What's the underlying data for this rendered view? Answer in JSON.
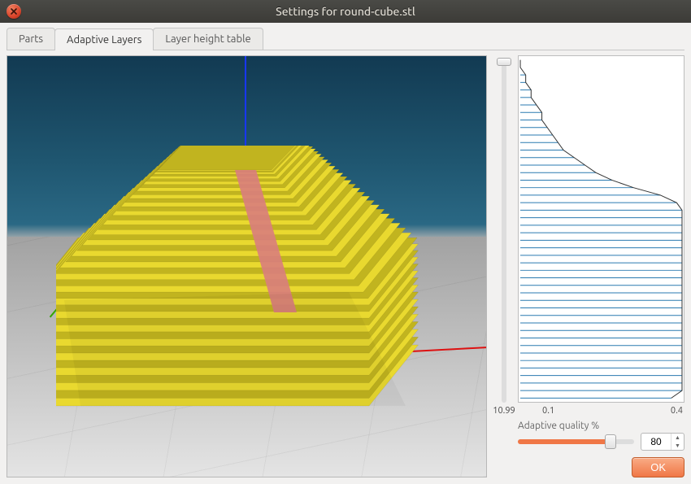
{
  "window": {
    "title": "Settings for round-cube.stl",
    "close_icon": "close"
  },
  "tabs": [
    {
      "label": "Parts",
      "active": false
    },
    {
      "label": "Adaptive Layers",
      "active": true
    },
    {
      "label": "Layer height table",
      "active": false
    }
  ],
  "viewport": {
    "axes": {
      "x_color": "#dd1111",
      "y_color": "#34a600",
      "z_color": "#1836ff"
    },
    "sky_top": "#123a52",
    "floor_color": "#d0d0d0",
    "model": {
      "type": "adaptive-layer-preview",
      "body_color": "#e9d92f",
      "body_shade": "#c1b41f",
      "seam_color": "#d97d7d",
      "layer_count_visible": 46
    }
  },
  "layer_chart": {
    "type": "profile",
    "xmin": 0.1,
    "xmax": 0.4,
    "xmin_label": "0.1",
    "xmax_label": "0.4",
    "line_color": "#2a7ab0",
    "outline_color": "#333333",
    "background_color": "#ffffff",
    "bars": [
      0.1,
      0.1,
      0.11,
      0.11,
      0.12,
      0.12,
      0.13,
      0.14,
      0.14,
      0.15,
      0.16,
      0.17,
      0.18,
      0.2,
      0.22,
      0.24,
      0.27,
      0.31,
      0.36,
      0.39,
      0.4,
      0.4,
      0.4,
      0.4,
      0.4,
      0.4,
      0.4,
      0.4,
      0.4,
      0.4,
      0.4,
      0.4,
      0.4,
      0.4,
      0.4,
      0.4,
      0.4,
      0.4,
      0.4,
      0.4,
      0.4,
      0.4,
      0.4,
      0.4,
      0.4,
      0.38
    ]
  },
  "vertical_slider": {
    "value": 10.99,
    "value_label": "10.99",
    "track_color": "#dddddd",
    "accent_color": "#f07746"
  },
  "adaptive_quality": {
    "label": "Adaptive quality %",
    "value": 80,
    "value_str": "80",
    "min": 0,
    "max": 100,
    "track_color": "#dddddd",
    "fill_color": "#f07746"
  },
  "footer": {
    "ok_label": "OK"
  }
}
